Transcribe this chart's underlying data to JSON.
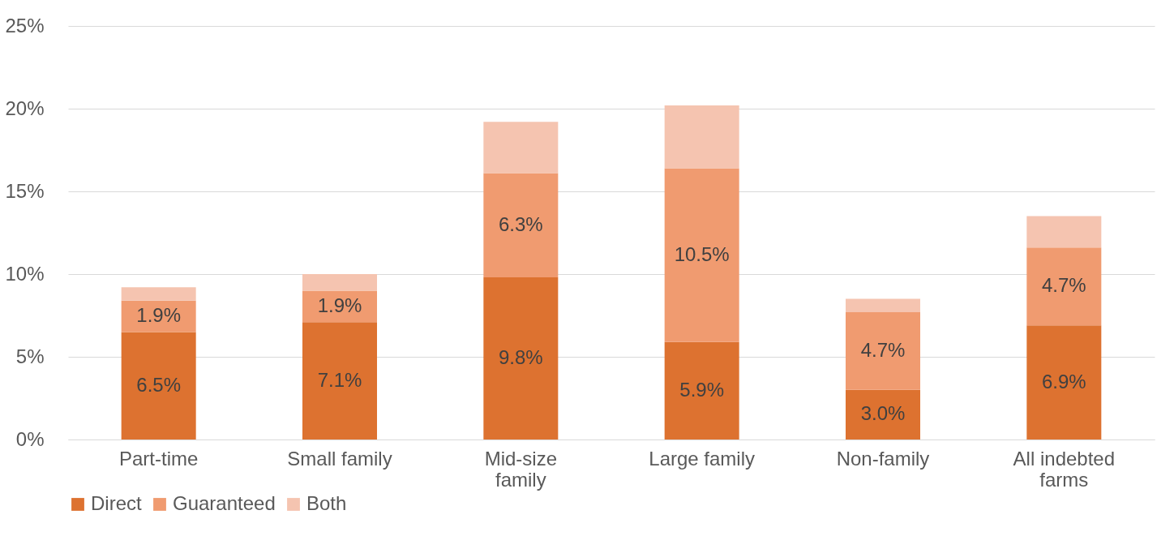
{
  "chart_data": {
    "type": "bar",
    "stacked": true,
    "categories": [
      "Part-time",
      "Small family",
      "Mid-size family",
      "Large family",
      "Non-family",
      "All indebted farms"
    ],
    "series": [
      {
        "name": "Direct",
        "color": "#dd7230",
        "values": [
          6.5,
          7.1,
          9.8,
          5.9,
          3.0,
          6.9
        ],
        "value_labels": [
          "6.5%",
          "7.1%",
          "9.8%",
          "5.9%",
          "3.0%",
          "6.9%"
        ]
      },
      {
        "name": "Guaranteed",
        "color": "#f09b70",
        "values": [
          1.9,
          1.9,
          6.3,
          10.5,
          4.7,
          4.7
        ],
        "value_labels": [
          "1.9%",
          "1.9%",
          "6.3%",
          "10.5%",
          "4.7%",
          "4.7%"
        ]
      },
      {
        "name": "Both",
        "color": "#f5c4b0",
        "values": [
          0.8,
          1.0,
          3.1,
          3.8,
          0.8,
          1.9
        ]
      }
    ],
    "ylim": [
      0,
      25
    ],
    "yticks": [
      {
        "value": 0,
        "label": "0%"
      },
      {
        "value": 5,
        "label": "5%"
      },
      {
        "value": 10,
        "label": "10%"
      },
      {
        "value": 15,
        "label": "15%"
      },
      {
        "value": 20,
        "label": "20%"
      },
      {
        "value": 25,
        "label": "25%"
      }
    ],
    "grid": "y",
    "legend": "bottom"
  }
}
